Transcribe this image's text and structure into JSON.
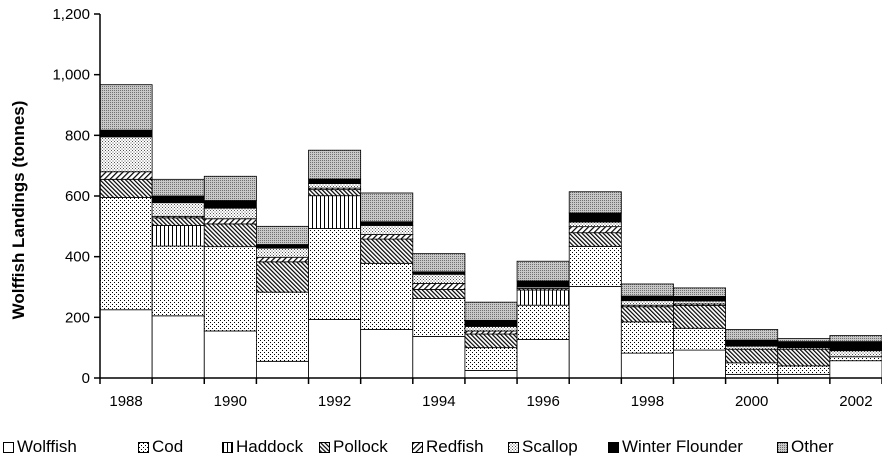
{
  "chart_data": {
    "type": "bar",
    "stacked": true,
    "ylabel": "Wolffish Landings (tonnes)",
    "ylim": [
      0,
      1200
    ],
    "yticks": [
      0,
      200,
      400,
      600,
      800,
      1000,
      1200
    ],
    "ytick_labels": [
      "0",
      "200",
      "400",
      "600",
      "800",
      "1,000",
      "1,200"
    ],
    "categories": [
      "1988",
      "1989",
      "1990",
      "1991",
      "1992",
      "1993",
      "1994",
      "1995",
      "1996",
      "1997",
      "1998",
      "1999",
      "2000",
      "2001",
      "2002"
    ],
    "x_tick_labels": [
      "1988",
      "",
      "1990",
      "",
      "1992",
      "",
      "1994",
      "",
      "1996",
      "",
      "1998",
      "",
      "2000",
      "",
      "2002"
    ],
    "series": [
      {
        "name": "Wolffish",
        "pattern": "white",
        "values": [
          225,
          205,
          155,
          55,
          193,
          160,
          137,
          25,
          127,
          302,
          82,
          92,
          12,
          12,
          57
        ]
      },
      {
        "name": "Cod",
        "pattern": "dots",
        "values": [
          370,
          230,
          278,
          228,
          300,
          218,
          125,
          75,
          113,
          132,
          103,
          72,
          38,
          28,
          13
        ]
      },
      {
        "name": "Haddock",
        "pattern": "vlines",
        "values": [
          0,
          68,
          0,
          0,
          108,
          0,
          0,
          0,
          50,
          0,
          0,
          0,
          0,
          0,
          0
        ]
      },
      {
        "name": "Pollock",
        "pattern": "diag-dense",
        "values": [
          60,
          25,
          75,
          100,
          20,
          80,
          30,
          45,
          5,
          45,
          50,
          75,
          45,
          55,
          0
        ]
      },
      {
        "name": "Redfish",
        "pattern": "diag",
        "values": [
          25,
          5,
          17,
          15,
          5,
          15,
          20,
          10,
          0,
          20,
          5,
          5,
          0,
          0,
          0
        ]
      },
      {
        "name": "Scallop",
        "pattern": "dots-fine",
        "values": [
          115,
          45,
          35,
          30,
          15,
          30,
          30,
          15,
          5,
          15,
          15,
          10,
          10,
          5,
          20
        ]
      },
      {
        "name": "Winter Flounder",
        "pattern": "black",
        "values": [
          22,
          22,
          25,
          12,
          15,
          12,
          8,
          20,
          20,
          30,
          15,
          15,
          20,
          20,
          30
        ]
      },
      {
        "name": "Other",
        "pattern": "dots-dense",
        "values": [
          150,
          55,
          80,
          60,
          95,
          95,
          60,
          60,
          65,
          70,
          40,
          28,
          35,
          10,
          20
        ]
      }
    ]
  }
}
